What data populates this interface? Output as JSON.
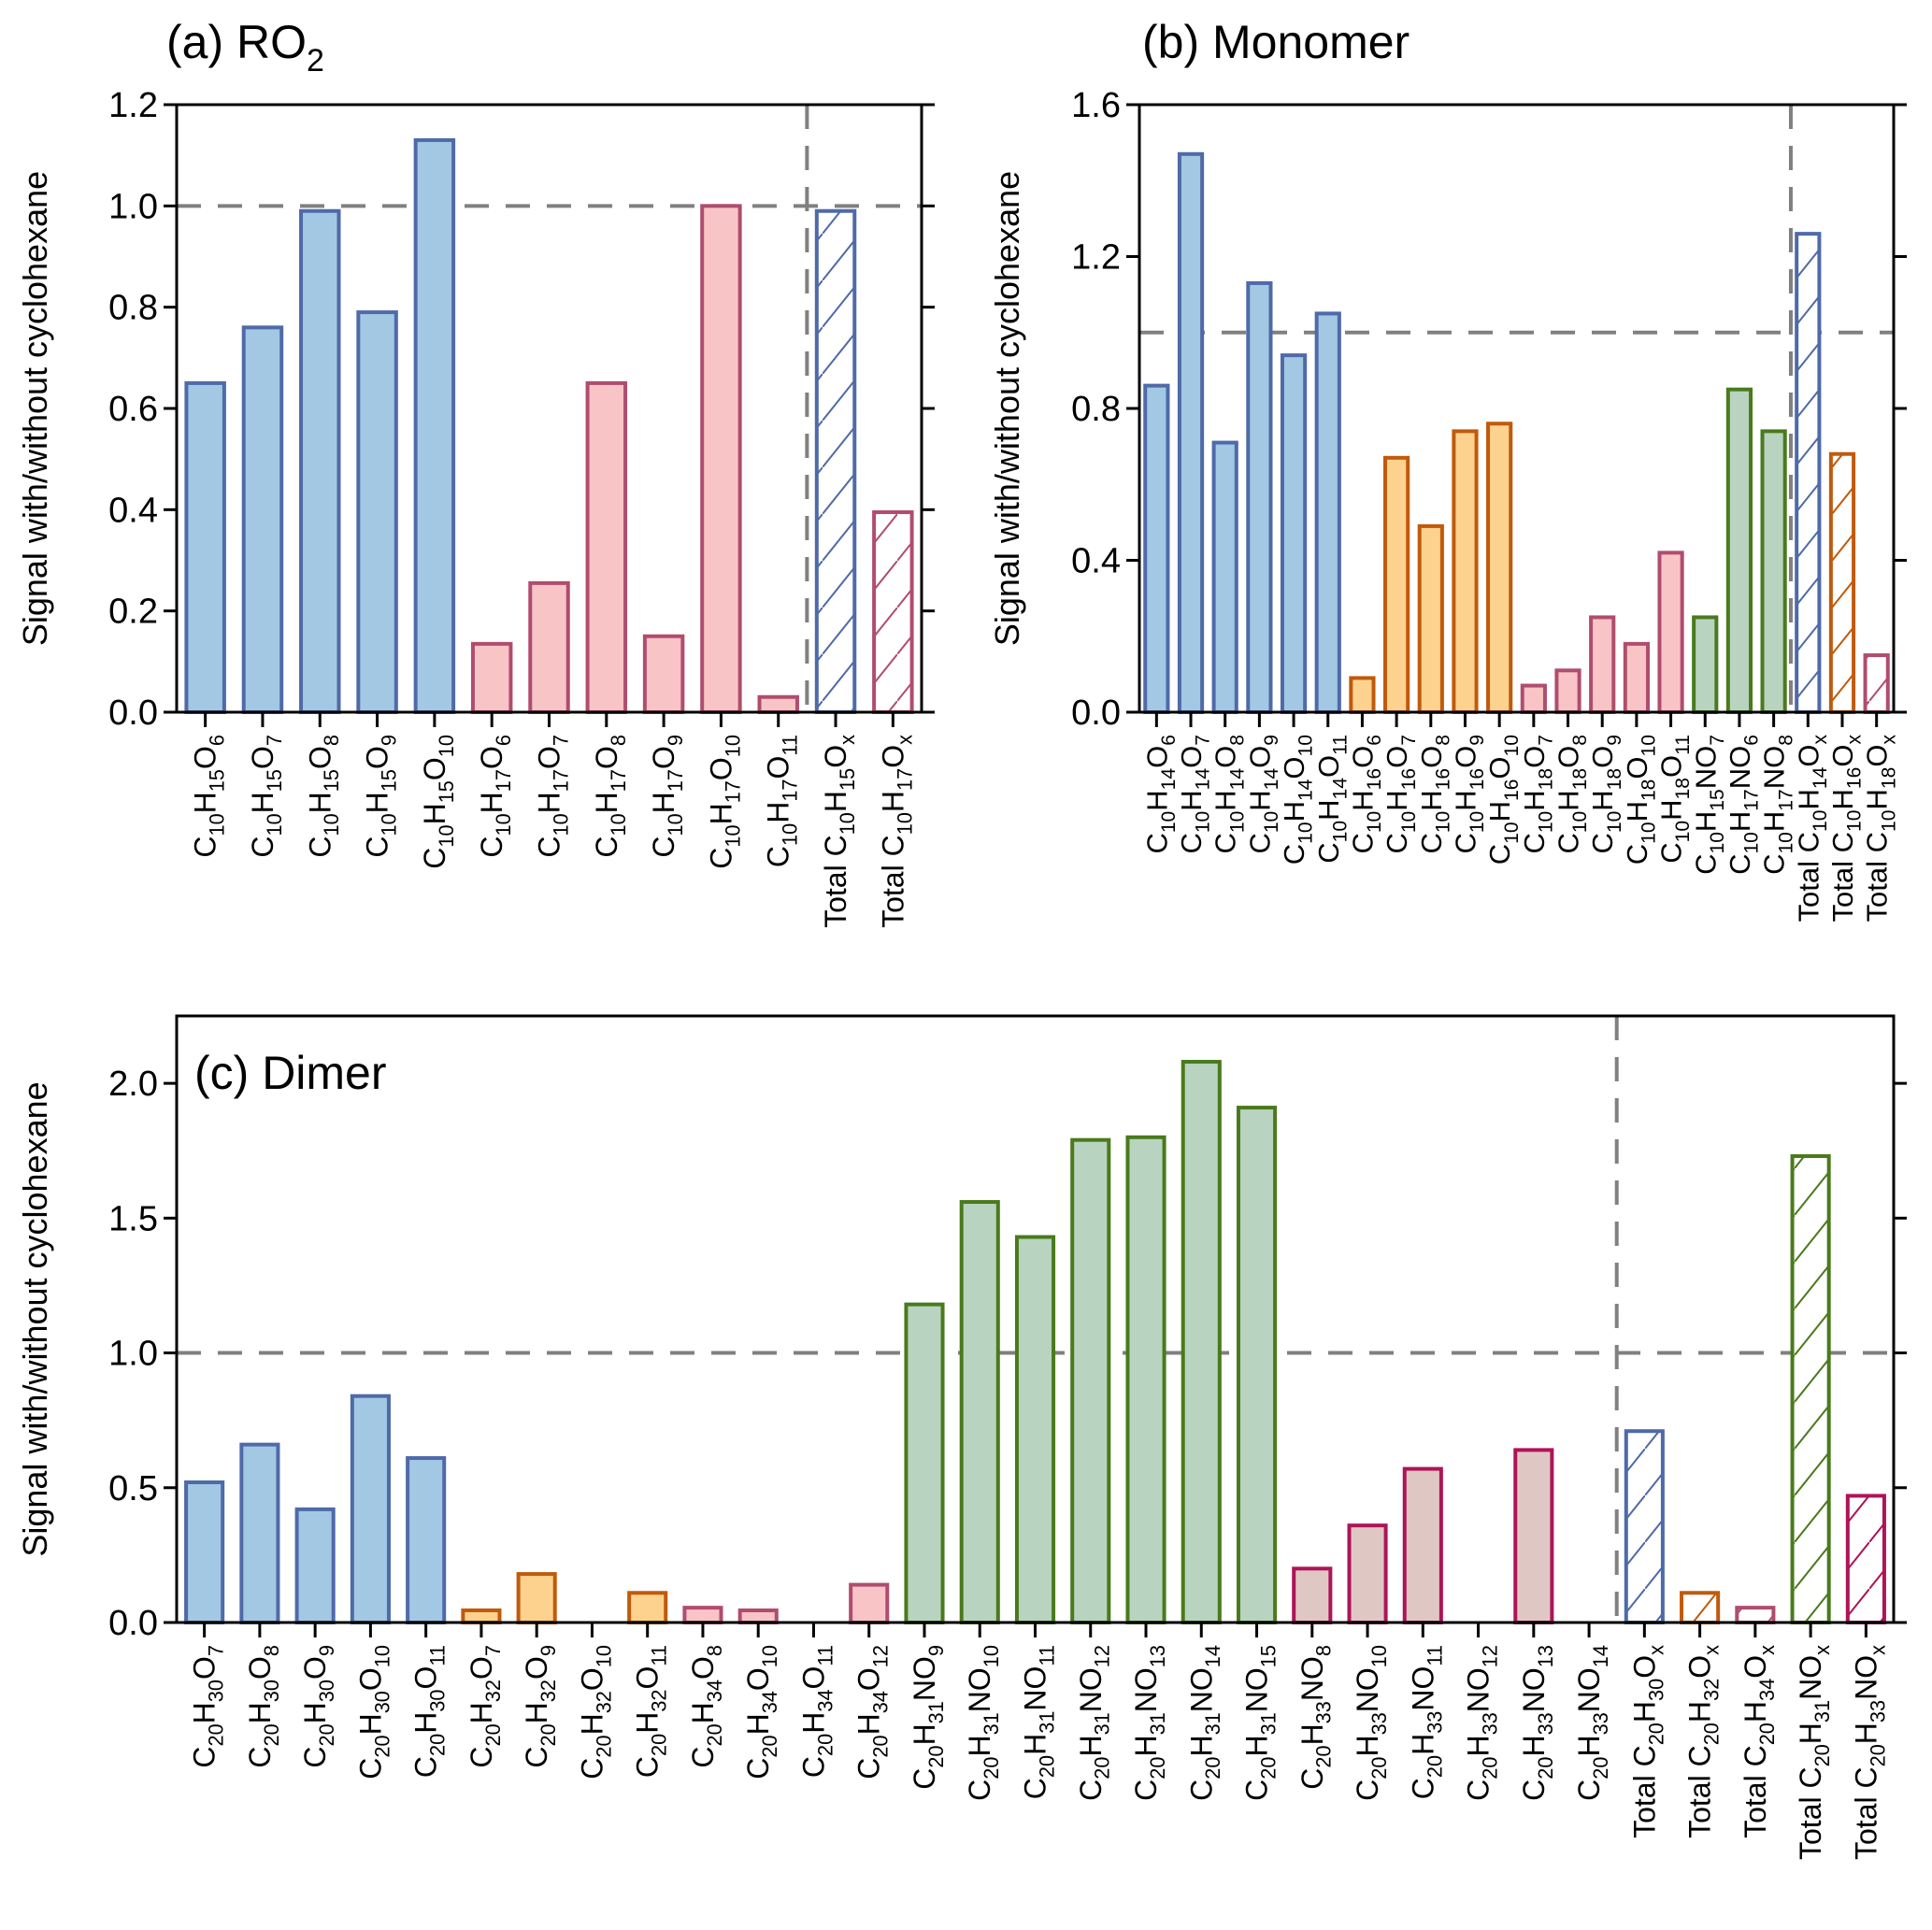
{
  "palette": {
    "blue": {
      "fill": "#a3c8e3",
      "stroke": "#4f6aa8"
    },
    "pink": {
      "fill": "#f9c4c6",
      "stroke": "#b04d6e"
    },
    "orange": {
      "fill": "#fdd28e",
      "stroke": "#c05a0c"
    },
    "green": {
      "fill": "#b8d4c0",
      "stroke": "#4a7a1c"
    },
    "mauve": {
      "fill": "#dfc8c4",
      "stroke": "#ad1457"
    },
    "reference_line": "#808080"
  },
  "chart_data": [
    {
      "type": "bar",
      "title": "(a) RO2",
      "ylabel": "Signal with/without cyclohexane",
      "xlabel": "",
      "ylim": [
        0,
        1.2
      ],
      "yticks": [
        "0.0",
        "0.2",
        "0.4",
        "0.6",
        "0.8",
        "1.0",
        "1.2"
      ],
      "reference_y": 1.0,
      "separator_after_index": 10,
      "categories": [
        "C10H15O6",
        "C10H15O7",
        "C10H15O8",
        "C10H15O9",
        "C10H15O10",
        "C10H17O6",
        "C10H17O7",
        "C10H17O8",
        "C10H17O9",
        "C10H17O10",
        "C10H17O11",
        "Total C10H15Ox",
        "Total C10H17Ox"
      ],
      "values": [
        0.65,
        0.76,
        0.99,
        0.79,
        1.13,
        0.135,
        0.255,
        0.65,
        0.15,
        1.0,
        0.03,
        0.99,
        0.395
      ],
      "groups": [
        "blue",
        "blue",
        "blue",
        "blue",
        "blue",
        "pink",
        "pink",
        "pink",
        "pink",
        "pink",
        "pink",
        "blue",
        "pink"
      ],
      "hatched": [
        false,
        false,
        false,
        false,
        false,
        false,
        false,
        false,
        false,
        false,
        false,
        true,
        true
      ]
    },
    {
      "type": "bar",
      "title": "(b) Monomer",
      "ylabel": "Signal with/without cyclohexane",
      "xlabel": "",
      "ylim": [
        0,
        1.6
      ],
      "yticks": [
        "0.0",
        "0.4",
        "0.8",
        "1.2",
        "1.6"
      ],
      "reference_y": 1.0,
      "separator_after_index": 18,
      "categories": [
        "C10H14O6",
        "C10H14O7",
        "C10H14O8",
        "C10H14O9",
        "C10H14O10",
        "C10H14O11",
        "C10H16O6",
        "C10H16O7",
        "C10H16O8",
        "C10H16O9",
        "C10H16O10",
        "C10H18O7",
        "C10H18O8",
        "C10H18O9",
        "C10H18O10",
        "C10H18O11",
        "C10H15NO7",
        "C10H17NO6",
        "C10H17NO8",
        "Total C10H14Ox",
        "Total C10H16Ox",
        "Total C10H18Ox"
      ],
      "values": [
        0.86,
        1.47,
        0.71,
        1.13,
        0.94,
        1.05,
        0.09,
        0.67,
        0.49,
        0.74,
        0.76,
        0.07,
        0.11,
        0.25,
        0.18,
        0.42,
        0.25,
        0.85,
        0.74,
        1.26,
        0.68,
        0.15
      ],
      "groups": [
        "blue",
        "blue",
        "blue",
        "blue",
        "blue",
        "blue",
        "orange",
        "orange",
        "orange",
        "orange",
        "orange",
        "pink",
        "pink",
        "pink",
        "pink",
        "pink",
        "green",
        "green",
        "green",
        "blue",
        "orange",
        "pink"
      ],
      "hatched": [
        false,
        false,
        false,
        false,
        false,
        false,
        false,
        false,
        false,
        false,
        false,
        false,
        false,
        false,
        false,
        false,
        false,
        false,
        false,
        true,
        true,
        true
      ]
    },
    {
      "type": "bar",
      "title": "(c) Dimer",
      "ylabel": "Signal with/without cyclohexane",
      "xlabel": "",
      "ylim": [
        0,
        2.25
      ],
      "yticks": [
        "0.0",
        "0.5",
        "1.0",
        "1.5",
        "2.0"
      ],
      "reference_y": 1.0,
      "separator_after_index": 25,
      "categories": [
        "C20H30O7",
        "C20H30O8",
        "C20H30O9",
        "C20H30O10",
        "C20H30O11",
        "C20H32O7",
        "C20H32O9",
        "C20H32O10",
        "C20H32O11",
        "C20H34O8",
        "C20H34O10",
        "C20H34O11",
        "C20H34O12",
        "C20H31NO9",
        "C20H31NO10",
        "C20H31NO11",
        "C20H31NO12",
        "C20H31NO13",
        "C20H31NO14",
        "C20H31NO15",
        "C20H33NO8",
        "C20H33NO10",
        "C20H33NO11",
        "C20H33NO12",
        "C20H33NO13",
        "C20H33NO14",
        "Total C20H30Ox",
        "Total C20H32Ox",
        "Total C20H34Ox",
        "Total C20H31NOx",
        "Total C20H33NOx"
      ],
      "values": [
        0.52,
        0.66,
        0.42,
        0.84,
        0.61,
        0.045,
        0.18,
        0,
        0.11,
        0.055,
        0.045,
        0,
        0.14,
        1.18,
        1.56,
        1.43,
        1.79,
        1.8,
        2.08,
        1.91,
        0.2,
        0.36,
        0.57,
        0,
        0.64,
        0,
        0.71,
        0.11,
        0.055,
        1.73,
        0.47
      ],
      "groups": [
        "blue",
        "blue",
        "blue",
        "blue",
        "blue",
        "orange",
        "orange",
        "orange",
        "orange",
        "pink",
        "pink",
        "pink",
        "pink",
        "green",
        "green",
        "green",
        "green",
        "green",
        "green",
        "green",
        "mauve",
        "mauve",
        "mauve",
        "mauve",
        "mauve",
        "mauve",
        "blue",
        "orange",
        "pink",
        "green",
        "mauve"
      ],
      "hatched": [
        false,
        false,
        false,
        false,
        false,
        false,
        false,
        false,
        false,
        false,
        false,
        false,
        false,
        false,
        false,
        false,
        false,
        false,
        false,
        false,
        false,
        false,
        false,
        false,
        false,
        false,
        true,
        true,
        true,
        true,
        true
      ]
    }
  ]
}
